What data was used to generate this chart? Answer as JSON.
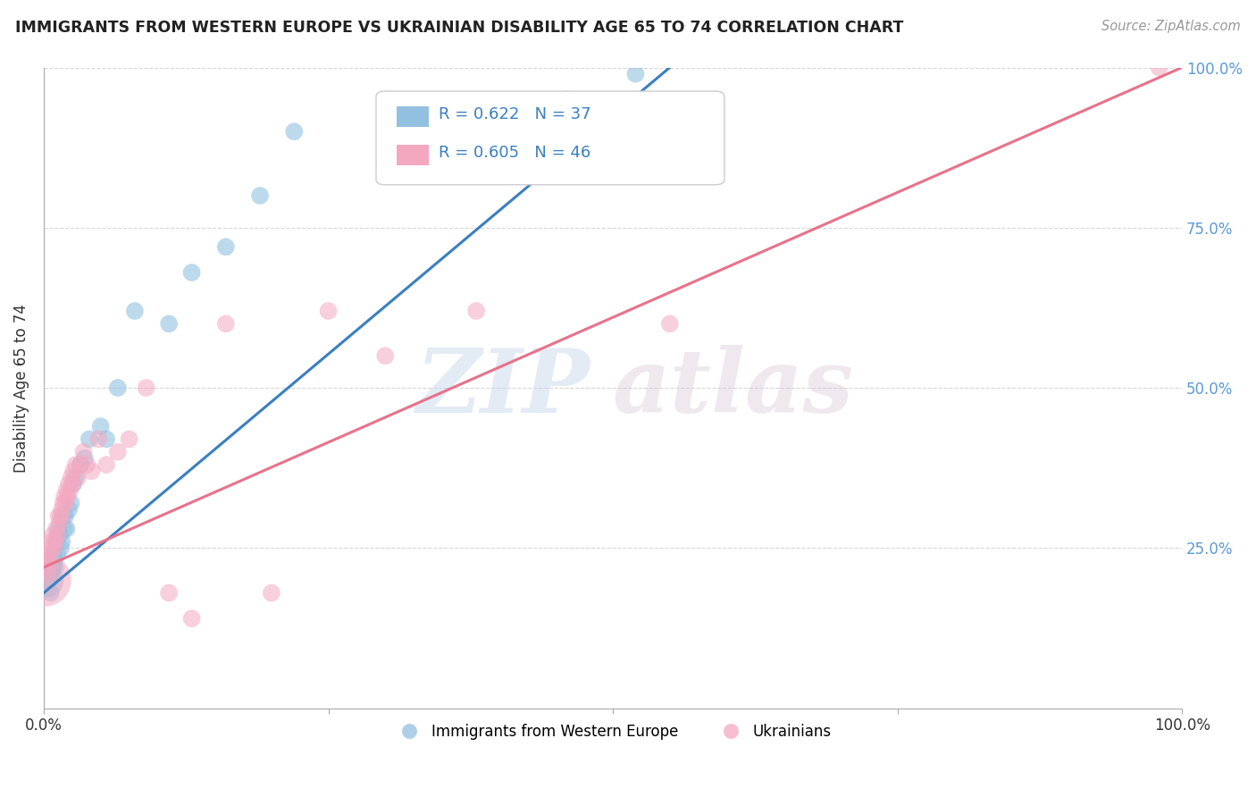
{
  "title": "IMMIGRANTS FROM WESTERN EUROPE VS UKRAINIAN DISABILITY AGE 65 TO 74 CORRELATION CHART",
  "source": "Source: ZipAtlas.com",
  "ylabel": "Disability Age 65 to 74",
  "watermark_zip": "ZIP",
  "watermark_atlas": "atlas",
  "legend1_label": "Immigrants from Western Europe",
  "legend2_label": "Ukrainians",
  "R1": 0.622,
  "N1": 37,
  "R2": 0.605,
  "N2": 46,
  "blue_color": "#92c0e0",
  "pink_color": "#f4a8c0",
  "blue_line_color": "#3a7fc1",
  "pink_line_color": "#e8728a",
  "grid_color": "#cccccc",
  "background_color": "#ffffff",
  "blue_scatter_x": [
    0.002,
    0.004,
    0.005,
    0.006,
    0.007,
    0.008,
    0.009,
    0.009,
    0.01,
    0.011,
    0.012,
    0.013,
    0.014,
    0.015,
    0.016,
    0.017,
    0.018,
    0.019,
    0.02,
    0.022,
    0.024,
    0.026,
    0.028,
    0.032,
    0.036,
    0.04,
    0.05,
    0.055,
    0.065,
    0.08,
    0.11,
    0.13,
    0.16,
    0.19,
    0.22,
    0.46,
    0.52
  ],
  "blue_scatter_y": [
    0.2,
    0.22,
    0.2,
    0.18,
    0.21,
    0.22,
    0.23,
    0.24,
    0.22,
    0.26,
    0.24,
    0.28,
    0.27,
    0.25,
    0.26,
    0.3,
    0.28,
    0.3,
    0.28,
    0.31,
    0.32,
    0.35,
    0.36,
    0.38,
    0.39,
    0.42,
    0.44,
    0.42,
    0.5,
    0.62,
    0.6,
    0.68,
    0.72,
    0.8,
    0.9,
    0.95,
    0.99
  ],
  "pink_scatter_x": [
    0.001,
    0.002,
    0.003,
    0.004,
    0.005,
    0.006,
    0.007,
    0.008,
    0.009,
    0.01,
    0.011,
    0.012,
    0.013,
    0.014,
    0.015,
    0.016,
    0.017,
    0.018,
    0.019,
    0.02,
    0.021,
    0.022,
    0.023,
    0.024,
    0.025,
    0.026,
    0.028,
    0.03,
    0.032,
    0.035,
    0.038,
    0.042,
    0.048,
    0.055,
    0.065,
    0.075,
    0.09,
    0.11,
    0.13,
    0.16,
    0.2,
    0.25,
    0.3,
    0.38,
    0.55,
    0.98
  ],
  "pink_scatter_y": [
    0.2,
    0.23,
    0.21,
    0.22,
    0.24,
    0.25,
    0.26,
    0.27,
    0.25,
    0.26,
    0.28,
    0.27,
    0.3,
    0.29,
    0.3,
    0.31,
    0.32,
    0.33,
    0.32,
    0.34,
    0.33,
    0.35,
    0.34,
    0.36,
    0.35,
    0.37,
    0.38,
    0.36,
    0.38,
    0.4,
    0.38,
    0.37,
    0.42,
    0.38,
    0.4,
    0.42,
    0.5,
    0.18,
    0.14,
    0.6,
    0.18,
    0.62,
    0.55,
    0.62,
    0.6,
    1.0
  ],
  "pink_large_idx": 0,
  "xlim": [
    0.0,
    1.0
  ],
  "ylim": [
    0.0,
    1.0
  ],
  "ytick_positions": [
    0.25,
    0.5,
    0.75,
    1.0
  ],
  "ytick_labels": [
    "25.0%",
    "50.0%",
    "75.0%",
    "100.0%"
  ],
  "blue_line_x0": 0.0,
  "blue_line_y0": 0.18,
  "blue_line_x1": 0.55,
  "blue_line_y1": 1.0,
  "pink_line_x0": 0.0,
  "pink_line_y0": 0.22,
  "pink_line_x1": 1.0,
  "pink_line_y1": 1.0
}
